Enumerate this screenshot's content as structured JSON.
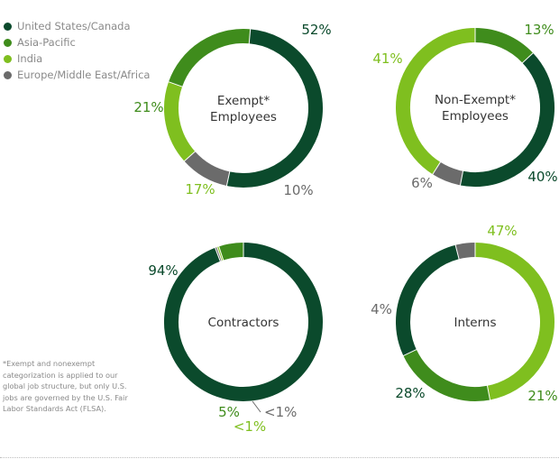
{
  "legend": [
    {
      "label": "United States/Canada",
      "color": "#0b4a2c"
    },
    {
      "label": "Asia-Pacific",
      "color": "#3f8c1c"
    },
    {
      "label": "India",
      "color": "#7fbf1f"
    },
    {
      "label": "Europe/Middle East/Africa",
      "color": "#6b6b6b"
    }
  ],
  "footnote": "*Exempt and nonexempt categorization is applied to our global job structure, but only U.S. jobs are governed by the U.S. Fair Labor Standards Act (FLSA).",
  "chart_data": [
    {
      "type": "pie",
      "title": "Exempt* Employees",
      "title_lines": [
        "Exempt*",
        "Employees"
      ],
      "slices": [
        {
          "name": "United States/Canada",
          "value": 52,
          "label": "52%"
        },
        {
          "name": "Europe/Middle East/Africa",
          "value": 10,
          "label": "10%"
        },
        {
          "name": "India",
          "value": 17,
          "label": "17%"
        },
        {
          "name": "Asia-Pacific",
          "value": 21,
          "label": "21%"
        }
      ]
    },
    {
      "type": "pie",
      "title": "Non-Exempt* Employees",
      "title_lines": [
        "Non-Exempt*",
        "Employees"
      ],
      "slices": [
        {
          "name": "Asia-Pacific",
          "value": 13,
          "label": "13%"
        },
        {
          "name": "United States/Canada",
          "value": 40,
          "label": "40%"
        },
        {
          "name": "Europe/Middle East/Africa",
          "value": 6,
          "label": "6%"
        },
        {
          "name": "India",
          "value": 41,
          "label": "41%"
        }
      ]
    },
    {
      "type": "pie",
      "title": "Contractors",
      "title_lines": [
        "Contractors"
      ],
      "slices": [
        {
          "name": "United States/Canada",
          "value": 94,
          "label": "94%"
        },
        {
          "name": "Europe/Middle East/Africa",
          "value": 0.4,
          "label": "<1%"
        },
        {
          "name": "India",
          "value": 0.4,
          "label": "<1%"
        },
        {
          "name": "Asia-Pacific",
          "value": 5,
          "label": "5%"
        }
      ]
    },
    {
      "type": "pie",
      "title": "Interns",
      "title_lines": [
        "Interns"
      ],
      "slices": [
        {
          "name": "India",
          "value": 47,
          "label": "47%"
        },
        {
          "name": "Asia-Pacific",
          "value": 21,
          "label": "21%"
        },
        {
          "name": "United States/Canada",
          "value": 28,
          "label": "28%"
        },
        {
          "name": "Europe/Middle East/Africa",
          "value": 4,
          "label": "4%"
        }
      ]
    }
  ]
}
